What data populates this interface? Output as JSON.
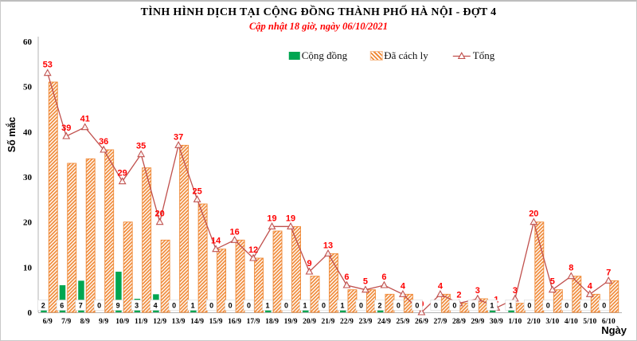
{
  "header": {
    "title": "TÌNH HÌNH DỊCH TẠI CỘNG ĐỒNG THÀNH PHỐ HÀ NỘI - ĐỢT 4",
    "subtitle": "Cập nhật 18 giờ, ngày 06/10/2021"
  },
  "chart_data": {
    "type": "bar",
    "subtype": "clustered-bars-with-line",
    "title": "TÌNH HÌNH DỊCH TẠI CỘNG ĐỒNG THÀNH PHỐ HÀ NỘI - ĐỢT 4",
    "subtitle": "Cập nhật 18 giờ, ngày 06/10/2021",
    "xlabel": "Ngày",
    "ylabel": "Số mắc",
    "ylim": [
      0,
      60
    ],
    "yticks": [
      0,
      10,
      20,
      30,
      40,
      50,
      60
    ],
    "grid": false,
    "legend_position": "top-center",
    "categories": [
      "6/9",
      "7/9",
      "8/9",
      "9/9",
      "10/9",
      "11/9",
      "12/9",
      "13/9",
      "14/9",
      "15/9",
      "16/9",
      "17/9",
      "18/9",
      "19/9",
      "20/9",
      "21/9",
      "22/9",
      "23/9",
      "24/9",
      "25/9",
      "26/9",
      "27/9",
      "28/9",
      "29/9",
      "30/9",
      "1/10",
      "2/10",
      "3/10",
      "4/10",
      "5/10",
      "6/10"
    ],
    "series": [
      {
        "name": "Cộng đồng",
        "type": "bar",
        "color": "#00A651",
        "values": [
          2,
          6,
          7,
          0,
          9,
          3,
          4,
          0,
          1,
          0,
          0,
          0,
          1,
          0,
          1,
          0,
          1,
          0,
          2,
          0,
          0,
          0,
          0,
          0,
          1,
          1,
          0,
          0,
          0,
          0,
          0
        ],
        "labels_shown": true,
        "label_color": "#000000"
      },
      {
        "name": "Đã cách ly",
        "type": "bar",
        "style": "diagonal-hatch",
        "color": "#F08A38",
        "values": [
          51,
          33,
          34,
          36,
          20,
          32,
          16,
          37,
          24,
          14,
          16,
          12,
          18,
          19,
          8,
          13,
          5,
          5,
          4,
          4,
          0,
          4,
          2,
          3,
          0,
          2,
          20,
          5,
          8,
          4,
          7
        ],
        "labels_shown": false
      },
      {
        "name": "Tổng",
        "type": "line",
        "marker": "open-triangle",
        "color": "#C0504D",
        "label_color": "#FF0000",
        "values": [
          53,
          39,
          41,
          36,
          29,
          35,
          20,
          37,
          25,
          14,
          16,
          12,
          19,
          19,
          9,
          13,
          6,
          5,
          6,
          4,
          0,
          4,
          2,
          3,
          1,
          3,
          20,
          5,
          8,
          4,
          7
        ],
        "labels_shown": true
      }
    ]
  }
}
